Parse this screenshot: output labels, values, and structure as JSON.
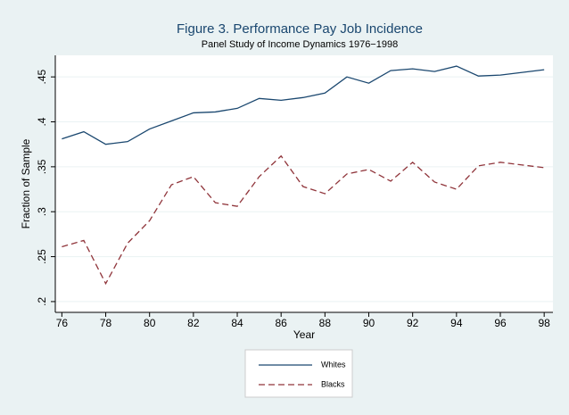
{
  "chart_data": {
    "type": "line",
    "title": "Figure 3. Performance Pay Job Incidence",
    "subtitle": "Panel  Study of Income Dynamics 1976−1998",
    "x_label": "Year",
    "y_label": "Fraction of Sample",
    "x": [
      76,
      77,
      78,
      79,
      80,
      81,
      82,
      83,
      84,
      85,
      86,
      87,
      88,
      89,
      90,
      91,
      92,
      93,
      94,
      95,
      96,
      97,
      98
    ],
    "series": [
      {
        "name": "Whites",
        "color": "#1a476f",
        "dash": false,
        "values": [
          0.381,
          0.389,
          0.375,
          0.378,
          0.392,
          0.401,
          0.41,
          0.411,
          0.415,
          0.426,
          0.424,
          0.427,
          0.432,
          0.45,
          0.443,
          0.457,
          0.459,
          0.456,
          0.462,
          0.451,
          0.452,
          0.455,
          0.458
        ]
      },
      {
        "name": "Blacks",
        "color": "#90353b",
        "dash": true,
        "values": [
          0.261,
          0.268,
          0.22,
          0.265,
          0.29,
          0.33,
          0.339,
          0.31,
          0.306,
          0.339,
          0.362,
          0.328,
          0.32,
          0.342,
          0.347,
          0.334,
          0.355,
          0.333,
          0.325,
          0.351,
          0.355,
          0.352,
          0.349
        ]
      }
    ],
    "xlim": [
      75.7,
      98.4
    ],
    "ylim": [
      0.188,
      0.474
    ],
    "xticks": [
      76,
      78,
      80,
      82,
      84,
      86,
      88,
      90,
      92,
      94,
      96,
      98
    ],
    "yticks": [
      {
        "value": 0.2,
        "label": ".2"
      },
      {
        "value": 0.25,
        "label": ".25"
      },
      {
        "value": 0.3,
        "label": ".3"
      },
      {
        "value": 0.35,
        "label": ".35"
      },
      {
        "value": 0.4,
        "label": ".4"
      },
      {
        "value": 0.45,
        "label": ".45"
      }
    ],
    "grid": true,
    "legend": "bottom"
  }
}
